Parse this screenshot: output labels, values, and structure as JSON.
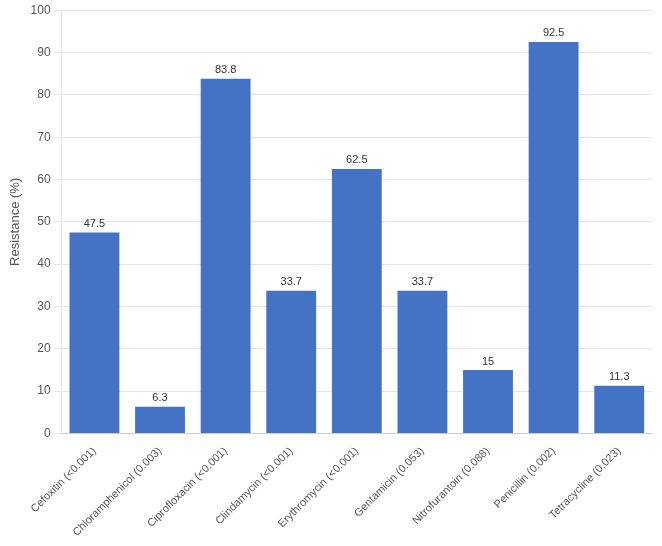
{
  "chart_data": {
    "type": "bar",
    "categories": [
      "Cefoxitin (<0.001)",
      "Chloramphenicol (0.003)",
      "Ciprofloxacin (<0.001)",
      "Clindamycin (<0.001)",
      "Erythromycin (<0.001)",
      "Gentamicin (0.053)",
      "Nitrofurantoin (0.088)",
      "Penicillin (0.002)",
      "Tetracycline (0.023)"
    ],
    "values": [
      47.5,
      6.3,
      83.8,
      33.7,
      62.5,
      33.7,
      15.0,
      92.5,
      11.3
    ],
    "color": "#4472C4",
    "ylabel": "Resistance (%)",
    "ylim": [
      0,
      100
    ],
    "yticks": [
      0,
      10,
      20,
      30,
      40,
      50,
      60,
      70,
      80,
      90,
      100
    ],
    "grid": true,
    "data_labels": true
  }
}
